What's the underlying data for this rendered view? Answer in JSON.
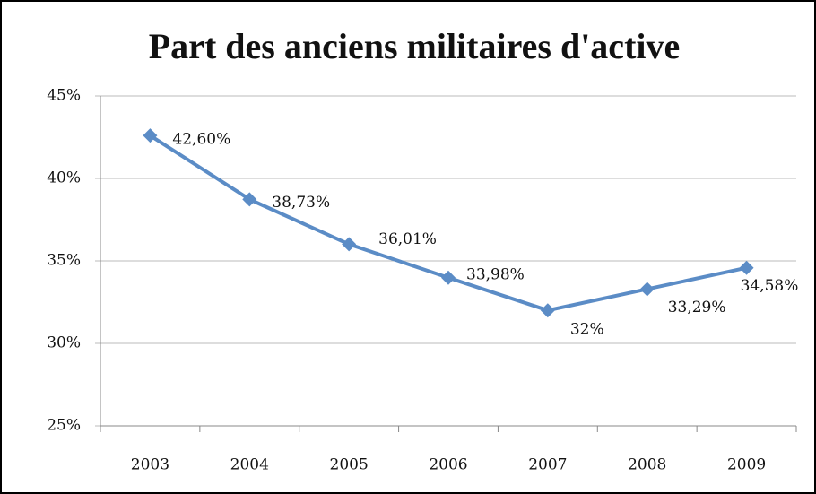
{
  "chart_data": {
    "type": "line",
    "title": "Part des anciens militaires d'active",
    "categories": [
      "2003",
      "2004",
      "2005",
      "2006",
      "2007",
      "2008",
      "2009"
    ],
    "series": [
      {
        "name": "Part",
        "color": "#5b8cc6",
        "values": [
          42.6,
          38.73,
          36.01,
          33.98,
          32,
          33.29,
          34.58
        ],
        "value_labels": [
          "42,60%",
          "38,73%",
          "36,01%",
          "33,98%",
          "32%",
          "33,29%",
          "34,58%"
        ]
      }
    ],
    "ylim": [
      25,
      45
    ],
    "yticks": [
      {
        "value": 25,
        "label": "25%"
      },
      {
        "value": 30,
        "label": "30%"
      },
      {
        "value": 35,
        "label": "35%"
      },
      {
        "value": 40,
        "label": "40%"
      },
      {
        "value": 45,
        "label": "45%"
      }
    ],
    "grid": true
  }
}
